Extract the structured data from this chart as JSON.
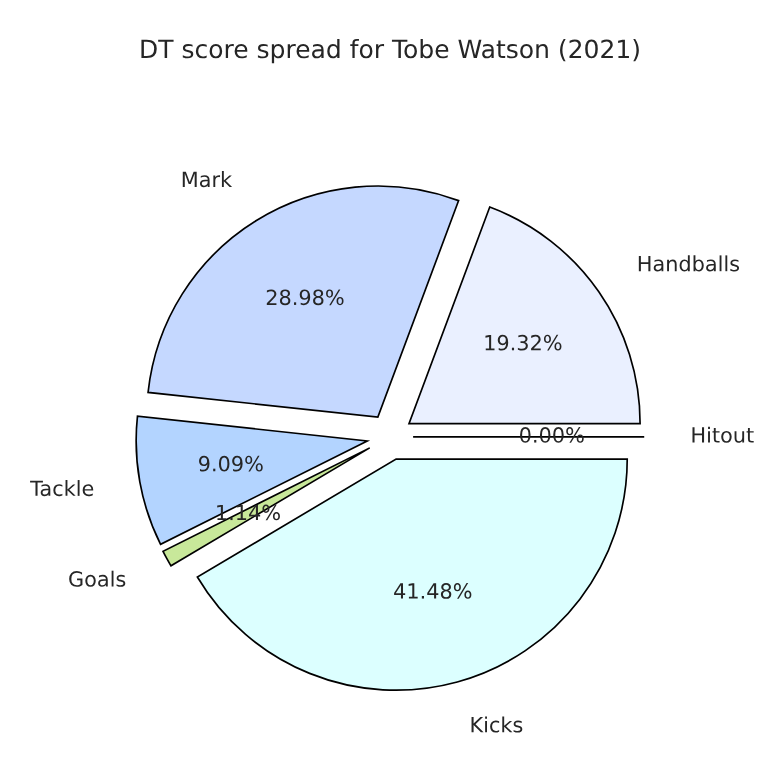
{
  "chart_data": {
    "type": "pie",
    "title": "DT score spread for Tobe Watson (2021)",
    "categories": [
      "Hitout",
      "Handballs",
      "Mark",
      "Tackle",
      "Goals",
      "Kicks"
    ],
    "values": [
      0.0,
      19.32,
      28.98,
      9.09,
      1.14,
      41.48
    ],
    "value_labels": [
      "0.00%",
      "19.32%",
      "28.98%",
      "9.09%",
      "1.14%",
      "41.48%"
    ],
    "colors": [
      "#f0f0ff",
      "#eaf0ff",
      "#c5d8ff",
      "#b3d4ff",
      "#c8e89a",
      "#dcffff"
    ],
    "legend": false
  }
}
